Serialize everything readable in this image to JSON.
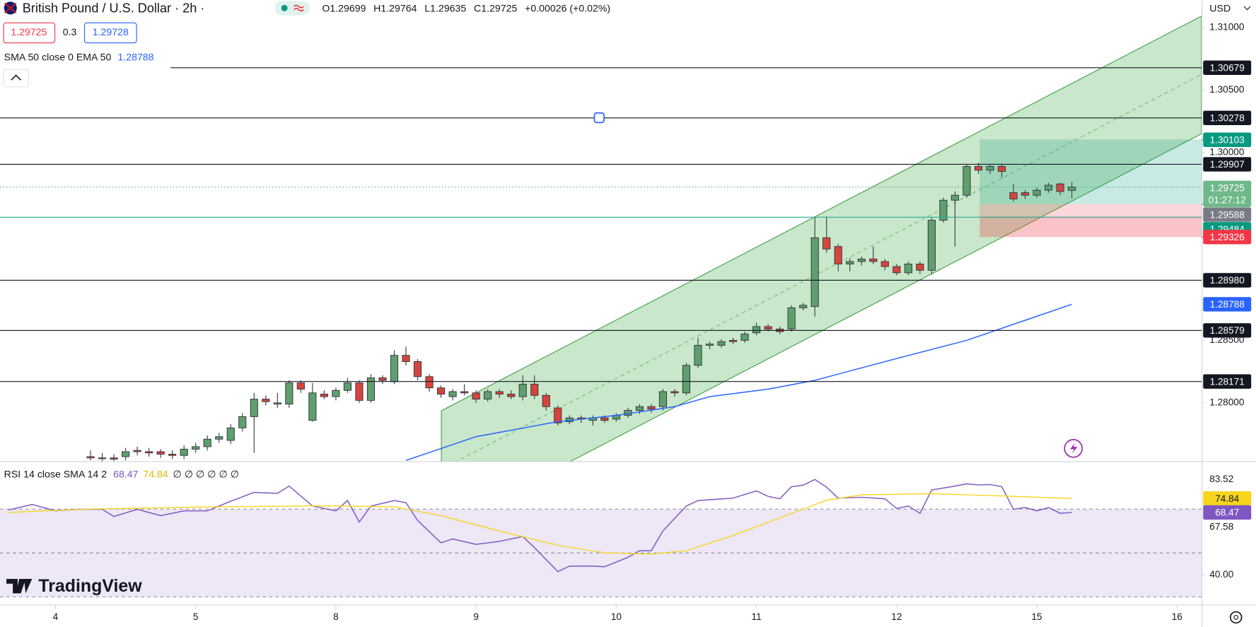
{
  "header": {
    "symbol": "British Pound / U.S. Dollar · 2h ·",
    "ohlc_keys": [
      "O",
      "H",
      "L",
      "C"
    ],
    "change": "+0.00026 (+0.02%)",
    "spread": "0.3",
    "buy": "1.29728",
    "indicator": "SMA 50 close 0 EMA 50",
    "currency": "USD",
    "brand": "TradingView"
  },
  "chart_data": [
    {
      "type": "candlestick",
      "up_color": "#5f9e6e",
      "down_color": "#d5453e",
      "open": [
        1.2757,
        1.2756,
        1.2756,
        1.2757,
        1.2762,
        1.2761,
        1.2761,
        1.2759,
        1.2758,
        1.2763,
        1.2765,
        1.2771,
        1.277,
        1.278,
        1.2789,
        1.2803,
        1.2799,
        1.2799,
        1.2816,
        1.2786,
        1.2807,
        1.2805,
        1.281,
        1.2816,
        1.2802,
        1.282,
        1.2817,
        1.2838,
        1.2833,
        1.2821,
        1.2812,
        1.2805,
        1.2809,
        1.2808,
        1.2803,
        1.2809,
        1.2807,
        1.2805,
        1.2815,
        1.2806,
        1.2796,
        1.2785,
        1.2788,
        1.2786,
        1.2788,
        1.2787,
        1.279,
        1.2794,
        1.2797,
        1.2797,
        1.2809,
        1.2808,
        1.283,
        1.2846,
        1.2846,
        1.285,
        1.285,
        1.2856,
        1.2861,
        1.2859,
        1.2859,
        1.2876,
        1.2877,
        1.2932,
        1.2925,
        1.2911,
        1.2913,
        1.2915,
        1.2913,
        1.2909,
        1.2904,
        1.2911,
        1.2906,
        1.2946,
        1.2962,
        1.2966,
        1.2989,
        1.2986,
        1.2989,
        1.2968,
        1.2968,
        1.2966,
        1.297,
        1.2975,
        1.29699
      ],
      "high": [
        1.2762,
        1.276,
        1.2759,
        1.2764,
        1.2765,
        1.2764,
        1.2763,
        1.2762,
        1.2766,
        1.2768,
        1.2774,
        1.2776,
        1.2783,
        1.2792,
        1.2808,
        1.2806,
        1.2808,
        1.2818,
        1.2818,
        1.2816,
        1.281,
        1.2812,
        1.282,
        1.2818,
        1.2823,
        1.2822,
        1.2842,
        1.2845,
        1.2835,
        1.2823,
        1.2814,
        1.2811,
        1.2815,
        1.281,
        1.2811,
        1.2811,
        1.281,
        1.2822,
        1.2822,
        1.2808,
        1.2798,
        1.279,
        1.279,
        1.279,
        1.279,
        1.2792,
        1.2796,
        1.2799,
        1.2799,
        1.2811,
        1.2811,
        1.2832,
        1.2852,
        1.2849,
        1.2851,
        1.2852,
        1.2857,
        1.2864,
        1.2863,
        1.2861,
        1.2878,
        1.288,
        1.2949,
        1.2949,
        1.2927,
        1.2916,
        1.2917,
        1.2925,
        1.2915,
        1.2911,
        1.2913,
        1.2913,
        1.2948,
        1.2964,
        1.2969,
        1.2991,
        1.2992,
        1.2991,
        1.2991,
        1.2975,
        1.297,
        1.2972,
        1.2976,
        1.2976,
        1.29764
      ],
      "low": [
        1.2754,
        1.2753,
        1.2752,
        1.2754,
        1.2758,
        1.2757,
        1.2756,
        1.2755,
        1.2755,
        1.276,
        1.2762,
        1.2768,
        1.2767,
        1.2777,
        1.276,
        1.2798,
        1.2796,
        1.2796,
        1.2808,
        1.2785,
        1.2803,
        1.2802,
        1.2808,
        1.28,
        1.28,
        1.2815,
        1.2815,
        1.283,
        1.2818,
        1.2809,
        1.2804,
        1.2802,
        1.2806,
        1.28,
        1.2801,
        1.2804,
        1.2803,
        1.2802,
        1.2803,
        1.2794,
        1.2782,
        1.2783,
        1.2784,
        1.2782,
        1.2784,
        1.2785,
        1.2788,
        1.2791,
        1.2792,
        1.2794,
        1.2805,
        1.2806,
        1.2828,
        1.2843,
        1.2844,
        1.2847,
        1.2848,
        1.2854,
        1.2857,
        1.2855,
        1.2857,
        1.2874,
        1.2869,
        1.292,
        1.2905,
        1.2905,
        1.291,
        1.2911,
        1.2906,
        1.2902,
        1.2902,
        1.2903,
        1.2903,
        1.2944,
        1.2925,
        1.2964,
        1.2983,
        1.2983,
        1.298,
        1.2961,
        1.2963,
        1.2964,
        1.2968,
        1.2966,
        1.29635
      ],
      "close": [
        1.2756,
        1.2756,
        1.2755,
        1.2761,
        1.2761,
        1.276,
        1.2759,
        1.2758,
        1.2763,
        1.2765,
        1.2771,
        1.2773,
        1.278,
        1.2789,
        1.2803,
        1.2801,
        1.28,
        1.2816,
        1.2811,
        1.2808,
        1.2805,
        1.281,
        1.2816,
        1.2802,
        1.282,
        1.2818,
        1.2838,
        1.2833,
        1.2821,
        1.2812,
        1.2807,
        1.2809,
        1.2808,
        1.2803,
        1.2809,
        1.2807,
        1.2805,
        1.2815,
        1.2806,
        1.2797,
        1.2784,
        1.2788,
        1.2787,
        1.2788,
        1.2786,
        1.279,
        1.2794,
        1.2797,
        1.2795,
        1.2809,
        1.2808,
        1.283,
        1.2846,
        1.2847,
        1.2849,
        1.2849,
        1.2855,
        1.2861,
        1.2859,
        1.2857,
        1.2876,
        1.2878,
        1.2932,
        1.2923,
        1.2911,
        1.2913,
        1.2915,
        1.2913,
        1.2909,
        1.2904,
        1.2911,
        1.2906,
        1.2946,
        1.2962,
        1.2966,
        1.2989,
        1.2986,
        1.2989,
        1.2985,
        1.2963,
        1.2966,
        1.297,
        1.2974,
        1.2969,
        1.29725
      ],
      "ema": {
        "color": "#2962ff",
        "x": [
          27,
          33,
          40,
          45,
          50,
          53,
          58,
          62,
          68,
          75,
          80,
          84
        ],
        "values": [
          1.2754,
          1.2773,
          1.2785,
          1.279,
          1.2797,
          1.2805,
          1.2811,
          1.2818,
          1.2833,
          1.285,
          1.2866,
          1.28788
        ]
      },
      "levels": [
        1.30679,
        1.30278,
        1.29907,
        {
          "value": 1.2898,
          "label": "1.28980"
        },
        1.28579,
        1.28171
      ],
      "marker_values": [
        1.30103,
        1.29588,
        1.29484,
        1.29326
      ],
      "marker_colors": [
        "#089981",
        "#787b86",
        "#089981",
        "#f23645"
      ],
      "timer": "01:27:12",
      "xlim": [
        -7.75,
        95.1
      ],
      "xticks": [
        {
          "value": -3,
          "label": "4"
        },
        {
          "value": 9,
          "label": "5"
        },
        {
          "value": 21,
          "label": "8"
        },
        {
          "value": 33,
          "label": "9"
        },
        {
          "value": 45,
          "label": "10"
        },
        {
          "value": 57,
          "label": "11"
        },
        {
          "value": 69,
          "label": "12"
        },
        {
          "value": 81,
          "label": "15"
        },
        {
          "value": 93,
          "label": "16"
        }
      ],
      "ylim": [
        1.2754,
        1.3122
      ],
      "yticks": [
        {
          "value": 1.31,
          "label": "1.31000"
        },
        {
          "value": 1.305,
          "label": "1.30500"
        },
        {
          "value": 1.3,
          "label": "1.30000"
        },
        {
          "value": 1.285,
          "label": "1.28500"
        },
        {
          "value": 1.28,
          "label": "1.28000"
        }
      ]
    },
    {
      "type": "line",
      "legend": "RSI 14 close SMA 14 2",
      "na": "∅ ∅ ∅ ∅ ∅ ∅",
      "series": [
        {
          "color": "#7e57c2",
          "x": [
            -7,
            -5,
            -3,
            -1,
            1,
            2,
            4,
            6,
            8,
            10,
            12,
            14,
            16,
            17,
            19,
            21,
            22,
            23,
            24,
            26,
            27,
            28,
            30,
            31,
            33,
            35,
            37,
            38,
            40,
            41,
            43,
            44,
            46,
            47,
            48,
            49,
            51,
            52,
            55,
            57,
            58,
            59,
            60,
            61,
            62,
            63,
            64,
            66,
            68,
            69,
            70,
            71,
            72,
            74,
            75,
            76,
            77,
            78,
            79,
            80,
            81,
            82,
            83,
            84
          ],
          "values": [
            69.6,
            72.1,
            69.2,
            69.9,
            69.9,
            66.6,
            69.9,
            67.0,
            69.2,
            69.2,
            73.6,
            77.6,
            77.2,
            80.5,
            71.4,
            69.2,
            73.9,
            64.1,
            71.4,
            73.9,
            72.9,
            64.8,
            54.6,
            56.4,
            53.9,
            55.3,
            57.5,
            52.4,
            41.5,
            44.0,
            44.0,
            43.7,
            48.0,
            51.0,
            51.0,
            60.1,
            71.4,
            73.9,
            75.0,
            78.3,
            75.8,
            74.7,
            80.2,
            80.9,
            83.5,
            80.0,
            75.0,
            75.4,
            74.7,
            70.3,
            71.4,
            68.1,
            78.7,
            80.5,
            81.5,
            81.0,
            81.2,
            80.2,
            69.9,
            70.7,
            69.2,
            70.7,
            68.1,
            68.47
          ]
        },
        {
          "color": "#f7d51d",
          "x": [
            -7,
            0,
            10,
            20,
            26,
            30,
            35,
            40,
            44,
            48,
            51,
            55,
            60,
            63,
            66,
            72,
            78,
            84
          ],
          "values": [
            68.5,
            70.0,
            71.0,
            71.5,
            71.0,
            67.0,
            60.0,
            53.5,
            50.0,
            49.5,
            51.0,
            58.0,
            68.0,
            74.0,
            76.5,
            77.0,
            76.0,
            74.84
          ]
        }
      ],
      "bands": [
        70,
        50,
        30
      ],
      "range_labels": [
        83.52,
        67.58
      ],
      "xlim": [
        -7.75,
        95.1
      ],
      "ylim": [
        28.3,
        91.1
      ],
      "yticks": [
        {
          "value": 40,
          "label": "40.00"
        }
      ]
    }
  ]
}
